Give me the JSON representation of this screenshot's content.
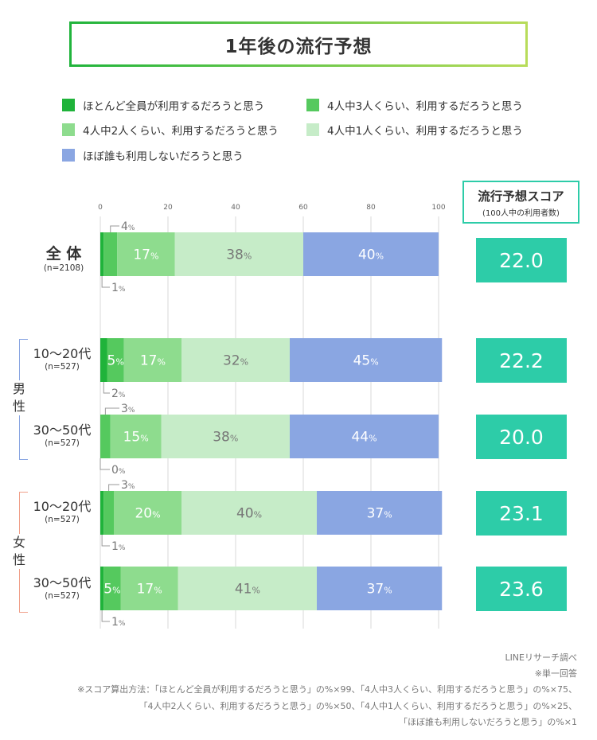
{
  "title": "1年後の流行予想",
  "legend": [
    {
      "label": "ほとんど全員が利用するだろうと思う",
      "color": "#1fb33a"
    },
    {
      "label": "4人中3人くらい、利用するだろうと思う",
      "color": "#55c95e"
    },
    {
      "label": "4人中2人くらい、利用するだろうと思う",
      "color": "#8edc8e"
    },
    {
      "label": "4人中1人くらい、利用するだろうと思う",
      "color": "#c6ecc8"
    },
    {
      "label": "ほぼ誰も利用しないだろうと思う",
      "color": "#8aa6e2"
    }
  ],
  "score_header": {
    "title": "流行予想スコア",
    "subtitle": "(100人中の利用者数)"
  },
  "group_labels": {
    "male": "男\n性",
    "female": "女\n性"
  },
  "rows": [
    {
      "label": "全 体",
      "n": "(n=2108)"
    },
    {
      "label": "10〜20代",
      "n": "(n=527)"
    },
    {
      "label": "30〜50代",
      "n": "(n=527)"
    },
    {
      "label": "10〜20代",
      "n": "(n=527)"
    },
    {
      "label": "30〜50代",
      "n": "(n=527)"
    }
  ],
  "scores": [
    "22.0",
    "22.2",
    "20.0",
    "23.1",
    "23.6"
  ],
  "footnotes": [
    "LINEリサーチ調べ",
    "※単一回答",
    "※スコア算出方法：「ほとんど全員が利用するだろうと思う」の%×99、「4人中3人くらい、利用するだろうと思う」の%×75、",
    "「4人中2人くらい、利用するだろうと思う」の%×50、「4人中1人くらい、利用するだろうと思う」の%×25、",
    "「ほぼ誰も利用しないだろうと思う」の%×1"
  ],
  "chart_data": {
    "type": "bar",
    "orientation": "horizontal-stacked",
    "title": "1年後の流行予想",
    "categories": [
      "全体",
      "男性10〜20代",
      "男性30〜50代",
      "女性10〜20代",
      "女性30〜50代"
    ],
    "xlim": [
      0,
      100
    ],
    "xticks": [
      "0",
      "20",
      "40",
      "60",
      "80",
      "100"
    ],
    "unit": "%",
    "series": [
      {
        "name": "ほとんど全員が利用するだろうと思う",
        "values": [
          1,
          2,
          0,
          1,
          1
        ]
      },
      {
        "name": "4人中3人くらい、利用するだろうと思う",
        "values": [
          4,
          5,
          3,
          3,
          5
        ]
      },
      {
        "name": "4人中2人くらい、利用するだろうと思う",
        "values": [
          17,
          17,
          15,
          20,
          17
        ]
      },
      {
        "name": "4人中1人くらい、利用するだろうと思う",
        "values": [
          38,
          32,
          38,
          40,
          41
        ]
      },
      {
        "name": "ほぼ誰も利用しないだろうと思う",
        "values": [
          40,
          45,
          44,
          37,
          37
        ]
      }
    ]
  }
}
